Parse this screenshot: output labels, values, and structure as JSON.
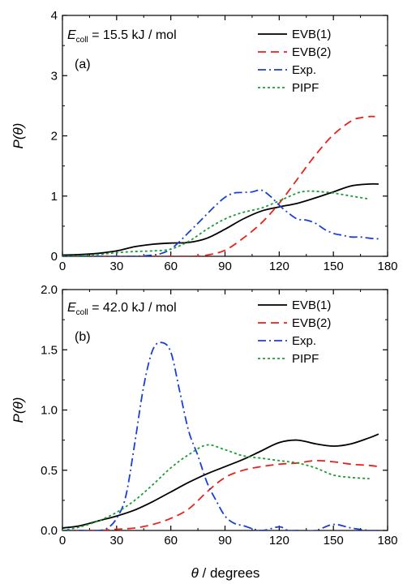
{
  "chart_data": [
    {
      "panel": "(a)",
      "type": "line",
      "annotation_prefix": "E",
      "annotation_subscript": "coll",
      "annotation_value": " = 15.5 kJ / mol",
      "ylabel_main": "P(",
      "ylabel_theta": "θ",
      "ylabel_close": ")",
      "xlim": [
        0,
        180
      ],
      "ylim": [
        0,
        4
      ],
      "xticks": [
        "0",
        "30",
        "60",
        "90",
        "120",
        "150",
        "180"
      ],
      "yticks": [
        "0",
        "1",
        "2",
        "3",
        "4"
      ],
      "legend_position": "top-right",
      "series": [
        {
          "name": "EVB(1)",
          "color": "#000000",
          "dash": "solid",
          "x": [
            0,
            10,
            20,
            30,
            40,
            50,
            60,
            70,
            80,
            90,
            100,
            110,
            120,
            130,
            140,
            150,
            160,
            170,
            175
          ],
          "y": [
            0.02,
            0.03,
            0.05,
            0.09,
            0.16,
            0.2,
            0.22,
            0.23,
            0.3,
            0.45,
            0.62,
            0.75,
            0.82,
            0.88,
            0.97,
            1.07,
            1.17,
            1.2,
            1.2
          ]
        },
        {
          "name": "EVB(2)",
          "color": "#e8211a",
          "dash": "dashed",
          "x": [
            0,
            10,
            20,
            30,
            40,
            50,
            60,
            70,
            80,
            90,
            100,
            110,
            120,
            130,
            140,
            150,
            160,
            165,
            170,
            173
          ],
          "y": [
            0.0,
            0.0,
            0.0,
            0.0,
            0.0,
            0.0,
            0.0,
            0.0,
            0.02,
            0.1,
            0.3,
            0.55,
            0.88,
            1.28,
            1.68,
            2.02,
            2.25,
            2.3,
            2.32,
            2.32
          ]
        },
        {
          "name": "Exp.",
          "color": "#1a3fd6",
          "dash": "dashdot",
          "x": [
            0,
            10,
            20,
            30,
            40,
            50,
            55,
            60,
            65,
            70,
            75,
            80,
            85,
            90,
            95,
            100,
            105,
            110,
            115,
            120,
            125,
            130,
            135,
            140,
            145,
            150,
            155,
            160,
            165,
            170,
            175
          ],
          "y": [
            0.0,
            0.0,
            0.0,
            0.0,
            0.0,
            0.02,
            0.05,
            0.12,
            0.25,
            0.4,
            0.55,
            0.7,
            0.85,
            0.98,
            1.05,
            1.06,
            1.07,
            1.1,
            1.0,
            0.85,
            0.72,
            0.62,
            0.6,
            0.55,
            0.45,
            0.38,
            0.35,
            0.32,
            0.32,
            0.3,
            0.29
          ]
        },
        {
          "name": "PIPF",
          "color": "#1a9e34",
          "dash": "dotted",
          "x": [
            0,
            10,
            20,
            30,
            40,
            50,
            60,
            70,
            80,
            90,
            100,
            110,
            120,
            130,
            135,
            140,
            150,
            160,
            170
          ],
          "y": [
            0.0,
            0.01,
            0.03,
            0.06,
            0.08,
            0.09,
            0.12,
            0.25,
            0.45,
            0.62,
            0.73,
            0.8,
            0.92,
            1.05,
            1.08,
            1.08,
            1.05,
            1.0,
            0.95
          ]
        }
      ]
    },
    {
      "panel": "(b)",
      "type": "line",
      "annotation_prefix": "E",
      "annotation_subscript": "coll",
      "annotation_value": " = 42.0 kJ / mol",
      "ylabel_main": "P(",
      "ylabel_theta": "θ",
      "ylabel_close": ")",
      "xlabel_theta": "θ",
      "xlabel_rest": " / degrees",
      "xlim": [
        0,
        180
      ],
      "ylim": [
        0,
        2
      ],
      "xticks": [
        "0",
        "30",
        "60",
        "90",
        "120",
        "150",
        "180"
      ],
      "yticks": [
        "0.0",
        "0.5",
        "1.0",
        "1.5",
        "2.0"
      ],
      "legend_position": "top-right",
      "series": [
        {
          "name": "EVB(1)",
          "color": "#000000",
          "dash": "solid",
          "x": [
            0,
            10,
            20,
            30,
            40,
            50,
            60,
            70,
            80,
            90,
            100,
            110,
            120,
            130,
            140,
            150,
            160,
            170,
            175
          ],
          "y": [
            0.02,
            0.04,
            0.08,
            0.12,
            0.17,
            0.24,
            0.32,
            0.4,
            0.47,
            0.53,
            0.59,
            0.66,
            0.73,
            0.75,
            0.72,
            0.7,
            0.72,
            0.77,
            0.8
          ]
        },
        {
          "name": "EVB(2)",
          "color": "#e8211a",
          "dash": "dashed",
          "x": [
            0,
            10,
            20,
            30,
            40,
            50,
            60,
            70,
            80,
            90,
            100,
            110,
            120,
            130,
            140,
            150,
            160,
            170,
            175
          ],
          "y": [
            0.0,
            0.0,
            0.0,
            0.01,
            0.02,
            0.05,
            0.1,
            0.18,
            0.32,
            0.44,
            0.5,
            0.53,
            0.55,
            0.56,
            0.58,
            0.57,
            0.55,
            0.54,
            0.53
          ]
        },
        {
          "name": "Exp.",
          "color": "#1a3fd6",
          "dash": "dashdot",
          "x": [
            0,
            10,
            20,
            25,
            30,
            35,
            40,
            45,
            50,
            55,
            60,
            65,
            70,
            75,
            80,
            85,
            90,
            95,
            100,
            110,
            120,
            125,
            130,
            140,
            150,
            160,
            170,
            175
          ],
          "y": [
            0.0,
            0.0,
            0.0,
            0.02,
            0.1,
            0.28,
            0.72,
            1.2,
            1.5,
            1.56,
            1.48,
            1.15,
            0.82,
            0.62,
            0.4,
            0.25,
            0.12,
            0.06,
            0.04,
            0.0,
            0.03,
            0.0,
            0.0,
            0.0,
            0.05,
            0.02,
            0.0,
            0.0
          ]
        },
        {
          "name": "PIPF",
          "color": "#1a9e34",
          "dash": "dotted",
          "x": [
            0,
            10,
            20,
            30,
            40,
            50,
            60,
            70,
            80,
            90,
            100,
            110,
            120,
            130,
            140,
            150,
            160,
            170
          ],
          "y": [
            0.0,
            0.03,
            0.08,
            0.15,
            0.25,
            0.38,
            0.52,
            0.63,
            0.71,
            0.67,
            0.62,
            0.6,
            0.58,
            0.56,
            0.52,
            0.46,
            0.44,
            0.43
          ]
        }
      ]
    }
  ]
}
